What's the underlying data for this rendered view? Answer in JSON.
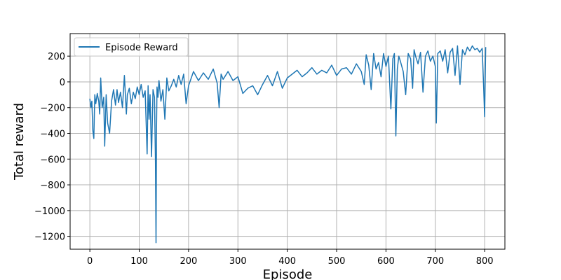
{
  "chart_data": {
    "type": "line",
    "title": "",
    "xlabel": "Episode",
    "ylabel": "Total reward",
    "xlim": [
      -40,
      841
    ],
    "ylim": [
      -1300,
      375
    ],
    "xticks": [
      0,
      100,
      200,
      300,
      400,
      500,
      600,
      700,
      800
    ],
    "xtick_labels": [
      "0",
      "100",
      "200",
      "300",
      "400",
      "500",
      "600",
      "700",
      "800"
    ],
    "yticks": [
      200,
      0,
      -200,
      -400,
      -600,
      -800,
      -1000,
      -1200
    ],
    "ytick_labels": [
      "200",
      "0",
      "−200",
      "−400",
      "−600",
      "−800",
      "−1000",
      "−1200"
    ],
    "grid": true,
    "legend_position": "top-left",
    "series": [
      {
        "name": "Episode Reward",
        "color": "#1f77b4",
        "x": [
          0,
          2,
          4,
          6,
          8,
          10,
          12,
          15,
          18,
          20,
          22,
          25,
          28,
          30,
          33,
          36,
          40,
          44,
          48,
          52,
          55,
          58,
          62,
          66,
          70,
          74,
          76,
          80,
          84,
          88,
          92,
          96,
          100,
          104,
          108,
          112,
          116,
          118,
          120,
          122,
          125,
          128,
          131,
          133,
          134,
          135,
          136,
          138,
          140,
          144,
          148,
          152,
          156,
          160,
          165,
          170,
          175,
          180,
          185,
          190,
          195,
          200,
          210,
          220,
          230,
          240,
          250,
          258,
          262,
          266,
          270,
          280,
          290,
          300,
          310,
          320,
          330,
          340,
          350,
          360,
          370,
          380,
          390,
          400,
          410,
          420,
          430,
          440,
          450,
          460,
          470,
          480,
          490,
          500,
          510,
          520,
          530,
          540,
          550,
          556,
          560,
          565,
          570,
          575,
          580,
          585,
          590,
          595,
          600,
          605,
          610,
          614,
          617,
          620,
          623,
          626,
          630,
          635,
          640,
          645,
          650,
          654,
          657,
          660,
          665,
          670,
          675,
          680,
          685,
          690,
          695,
          700,
          702,
          705,
          710,
          715,
          720,
          725,
          730,
          735,
          740,
          745,
          750,
          755,
          760,
          765,
          770,
          775,
          780,
          785,
          790,
          795,
          798,
          800,
          802
        ],
        "y": [
          -130,
          -200,
          -150,
          -380,
          -440,
          -100,
          -170,
          -90,
          -150,
          -250,
          30,
          -200,
          -120,
          -500,
          -100,
          -320,
          -400,
          -150,
          -60,
          -180,
          -60,
          -160,
          -80,
          -200,
          50,
          -250,
          -100,
          -50,
          -170,
          -80,
          -130,
          -40,
          -100,
          -20,
          -120,
          -70,
          -560,
          -30,
          -290,
          -100,
          -580,
          -60,
          -120,
          -620,
          -1250,
          -360,
          -40,
          -120,
          10,
          -150,
          -60,
          -290,
          30,
          -70,
          -30,
          20,
          -40,
          50,
          -20,
          60,
          -170,
          -30,
          80,
          10,
          70,
          20,
          100,
          -10,
          -200,
          60,
          20,
          80,
          10,
          40,
          -90,
          -50,
          -30,
          -100,
          -20,
          50,
          -30,
          80,
          -50,
          30,
          60,
          90,
          40,
          70,
          110,
          60,
          90,
          70,
          130,
          50,
          100,
          110,
          60,
          140,
          80,
          -20,
          210,
          130,
          -60,
          220,
          100,
          150,
          40,
          220,
          120,
          200,
          -210,
          180,
          220,
          -420,
          100,
          200,
          150,
          80,
          -100,
          220,
          180,
          -50,
          250,
          200,
          140,
          230,
          -80,
          200,
          240,
          160,
          200,
          120,
          -320,
          220,
          240,
          160,
          250,
          70,
          230,
          260,
          50,
          280,
          -20,
          250,
          210,
          270,
          240,
          280,
          250,
          260,
          230,
          260,
          -40,
          -270,
          270
        ]
      }
    ]
  }
}
